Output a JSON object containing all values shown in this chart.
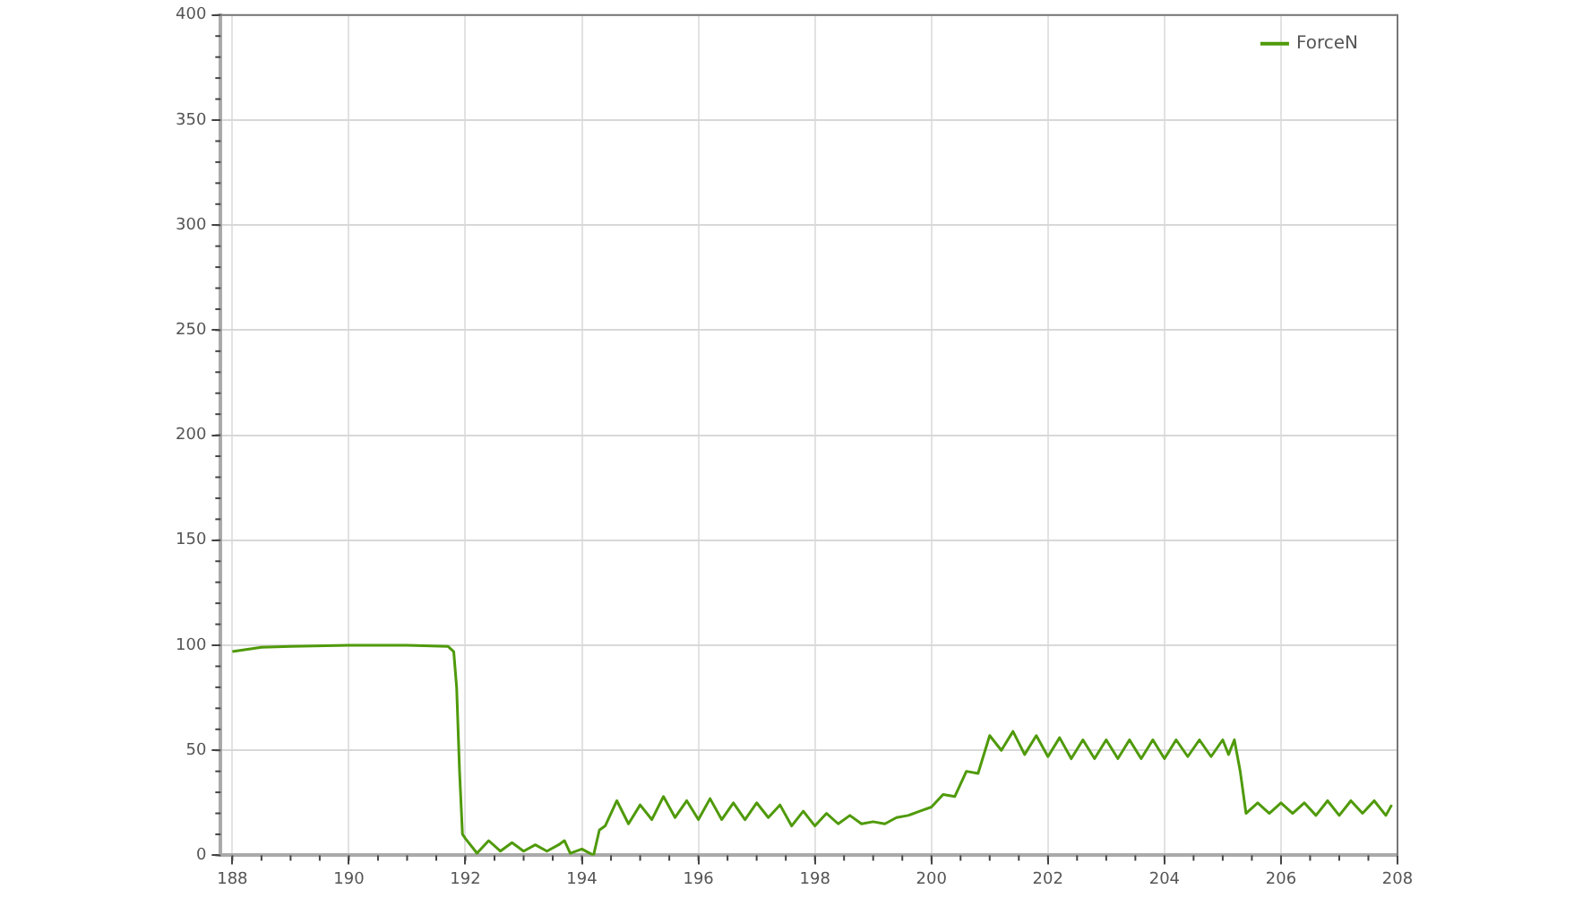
{
  "chart_data": {
    "type": "line",
    "xlim": [
      187.8,
      208
    ],
    "xticks": [
      188,
      190,
      192,
      194,
      196,
      198,
      200,
      202,
      204,
      206,
      208
    ],
    "ylim": [
      0,
      400
    ],
    "yticks": [
      0,
      50,
      100,
      150,
      200,
      250,
      300,
      350,
      400
    ],
    "grid": true,
    "legend": "top right",
    "marker": "none",
    "line_style": "solid",
    "series": [
      {
        "name": "ForceN",
        "color": "#4f9a0a",
        "x": [
          188,
          188.5,
          189,
          190,
          191,
          191.7,
          191.8,
          191.85,
          191.9,
          191.95,
          192.0,
          192.2,
          192.4,
          192.6,
          192.8,
          193.0,
          193.2,
          193.4,
          193.6,
          193.7,
          193.8,
          194.0,
          194.2,
          194.3,
          194.4,
          194.6,
          194.8,
          195.0,
          195.2,
          195.4,
          195.6,
          195.8,
          196.0,
          196.2,
          196.4,
          196.6,
          196.8,
          197.0,
          197.2,
          197.4,
          197.6,
          197.8,
          198.0,
          198.2,
          198.4,
          198.6,
          198.8,
          199.0,
          199.2,
          199.4,
          199.6,
          199.8,
          200.0,
          200.2,
          200.4,
          200.6,
          200.8,
          201.0,
          201.2,
          201.4,
          201.6,
          201.8,
          202.0,
          202.2,
          202.4,
          202.6,
          202.8,
          203.0,
          203.2,
          203.4,
          203.6,
          203.8,
          204.0,
          204.2,
          204.4,
          204.6,
          204.8,
          205.0,
          205.1,
          205.2,
          205.3,
          205.4,
          205.6,
          205.8,
          206.0,
          206.2,
          206.4,
          206.6,
          206.8,
          207.0,
          207.2,
          207.4,
          207.6,
          207.8,
          207.9
        ],
        "values": [
          97,
          99,
          99.5,
          100,
          100,
          99.5,
          97,
          80,
          40,
          10,
          8,
          1,
          7,
          2,
          6,
          2,
          5,
          2,
          5,
          7,
          1,
          3,
          0,
          12,
          14,
          26,
          15,
          24,
          17,
          28,
          18,
          26,
          17,
          27,
          17,
          25,
          17,
          25,
          18,
          24,
          14,
          21,
          14,
          20,
          15,
          19,
          15,
          16,
          15,
          18,
          19,
          21,
          23,
          29,
          28,
          40,
          39,
          57,
          50,
          59,
          48,
          57,
          47,
          56,
          46,
          55,
          46,
          55,
          46,
          55,
          46,
          55,
          46,
          55,
          47,
          55,
          47,
          55,
          48,
          55,
          40,
          20,
          25,
          20,
          25,
          20,
          25,
          19,
          26,
          19,
          26,
          20,
          26,
          19,
          24
        ]
      }
    ]
  }
}
